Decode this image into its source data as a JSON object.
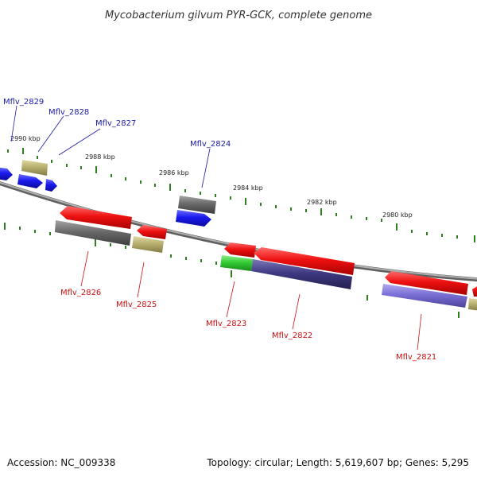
{
  "title": "Mycobacterium gilvum PYR-GCK, complete genome",
  "footer": {
    "accession": "Accession: NC_009338",
    "summary": "Topology: circular; Length: 5,619,607 bp; Genes: 5,295"
  },
  "colors": {
    "backbone": "#8a8a8a",
    "tick": "#2e7d1f",
    "label_top": "#1a1aa8",
    "label_bottom": "#cc1010",
    "gene_red": "#ee1111",
    "gene_blue": "#1a1aee",
    "gene_gray": "#6a6a6a",
    "gene_khaki": "#b8b070",
    "gene_green": "#33cc33",
    "gene_navy": "#3f3a82",
    "gene_purple": "#7a6fd6"
  },
  "kbp_labels": {
    "k2990": "2990 kbp",
    "k2988": "2988 kbp",
    "k2986": "2986 kbp",
    "k2984": "2984 kbp",
    "k2982": "2982 kbp",
    "k2980": "2980 kbp"
  },
  "genes": {
    "g2829": "Mflv_2829",
    "g2828": "Mflv_2828",
    "g2827": "Mflv_2827",
    "g2824": "Mflv_2824",
    "g2826": "Mflv_2826",
    "g2825": "Mflv_2825",
    "g2823": "Mflv_2823",
    "g2822": "Mflv_2822",
    "g2821": "Mflv_2821"
  }
}
